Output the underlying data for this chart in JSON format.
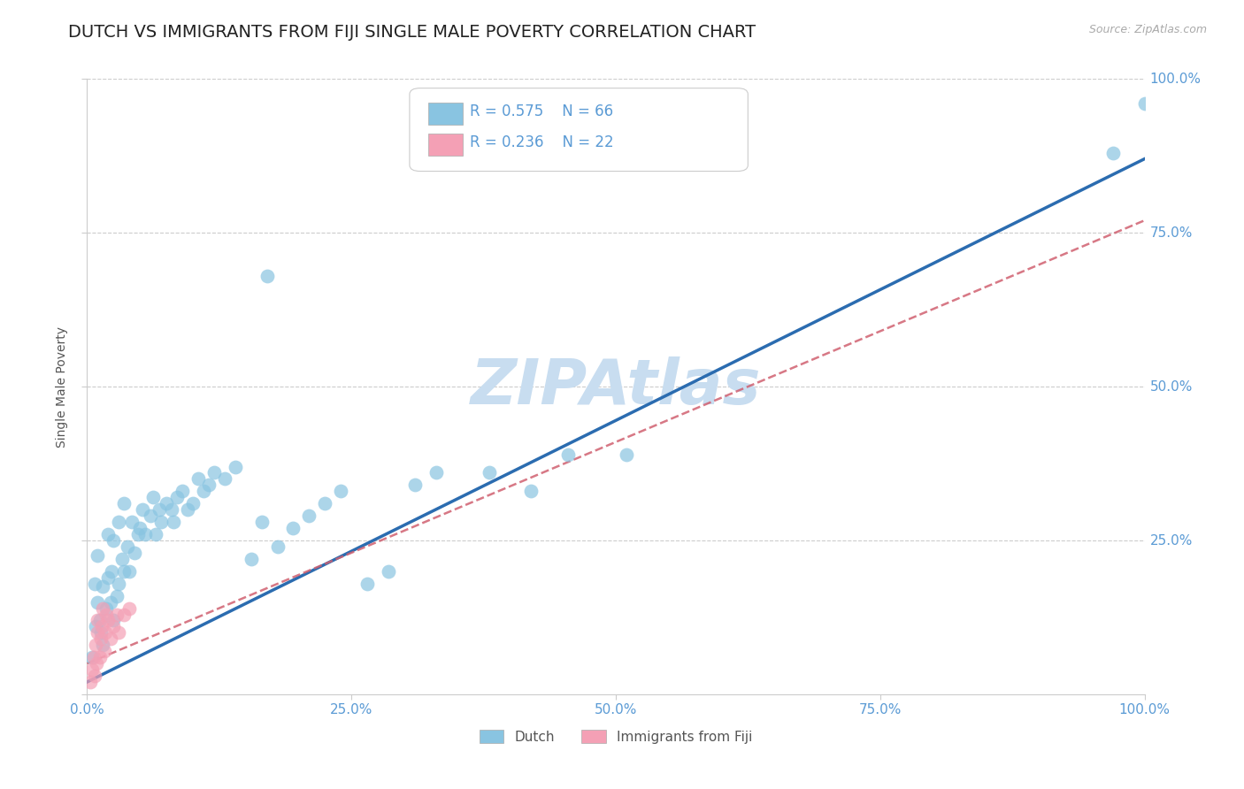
{
  "title": "DUTCH VS IMMIGRANTS FROM FIJI SINGLE MALE POVERTY CORRELATION CHART",
  "source": "Source: ZipAtlas.com",
  "ylabel": "Single Male Poverty",
  "xlim": [
    0,
    1
  ],
  "ylim": [
    0,
    1
  ],
  "dutch_color": "#89c4e1",
  "fiji_color": "#f4a0b5",
  "trendline_dutch_color": "#2b6cb0",
  "trendline_fiji_color": "#d06070",
  "background_color": "#ffffff",
  "watermark": "ZIPAtlas",
  "watermark_color": "#c8ddf0",
  "R_dutch": 0.575,
  "N_dutch": 66,
  "R_fiji": 0.236,
  "N_fiji": 22,
  "grid_color": "#cccccc",
  "tick_color": "#5b9bd5",
  "title_fontsize": 14,
  "axis_label_fontsize": 10,
  "tick_fontsize": 11,
  "dutch_slope": 0.85,
  "dutch_intercept": 0.02,
  "fiji_slope": 0.72,
  "fiji_intercept": 0.05,
  "dutch_x": [
    0.005,
    0.007,
    0.008,
    0.01,
    0.01,
    0.012,
    0.013,
    0.015,
    0.015,
    0.018,
    0.02,
    0.02,
    0.022,
    0.023,
    0.025,
    0.025,
    0.028,
    0.03,
    0.03,
    0.033,
    0.035,
    0.035,
    0.038,
    0.04,
    0.042,
    0.045,
    0.048,
    0.05,
    0.052,
    0.055,
    0.06,
    0.062,
    0.065,
    0.068,
    0.07,
    0.075,
    0.08,
    0.082,
    0.085,
    0.09,
    0.095,
    0.1,
    0.105,
    0.11,
    0.115,
    0.12,
    0.13,
    0.14,
    0.155,
    0.165,
    0.17,
    0.18,
    0.195,
    0.21,
    0.225,
    0.24,
    0.265,
    0.285,
    0.31,
    0.33,
    0.38,
    0.42,
    0.455,
    0.51,
    0.97,
    1.0
  ],
  "dutch_y": [
    0.06,
    0.18,
    0.11,
    0.15,
    0.225,
    0.12,
    0.1,
    0.08,
    0.175,
    0.14,
    0.19,
    0.26,
    0.15,
    0.2,
    0.12,
    0.25,
    0.16,
    0.18,
    0.28,
    0.22,
    0.2,
    0.31,
    0.24,
    0.2,
    0.28,
    0.23,
    0.26,
    0.27,
    0.3,
    0.26,
    0.29,
    0.32,
    0.26,
    0.3,
    0.28,
    0.31,
    0.3,
    0.28,
    0.32,
    0.33,
    0.3,
    0.31,
    0.35,
    0.33,
    0.34,
    0.36,
    0.35,
    0.37,
    0.22,
    0.28,
    0.68,
    0.24,
    0.27,
    0.29,
    0.31,
    0.33,
    0.18,
    0.2,
    0.34,
    0.36,
    0.36,
    0.33,
    0.39,
    0.39,
    0.88,
    0.96
  ],
  "fiji_x": [
    0.003,
    0.005,
    0.006,
    0.007,
    0.008,
    0.009,
    0.01,
    0.01,
    0.012,
    0.013,
    0.014,
    0.015,
    0.016,
    0.017,
    0.018,
    0.02,
    0.022,
    0.025,
    0.028,
    0.03,
    0.035,
    0.04
  ],
  "fiji_y": [
    0.02,
    0.04,
    0.06,
    0.03,
    0.08,
    0.05,
    0.1,
    0.12,
    0.06,
    0.09,
    0.11,
    0.14,
    0.07,
    0.1,
    0.13,
    0.12,
    0.09,
    0.11,
    0.13,
    0.1,
    0.13,
    0.14
  ]
}
